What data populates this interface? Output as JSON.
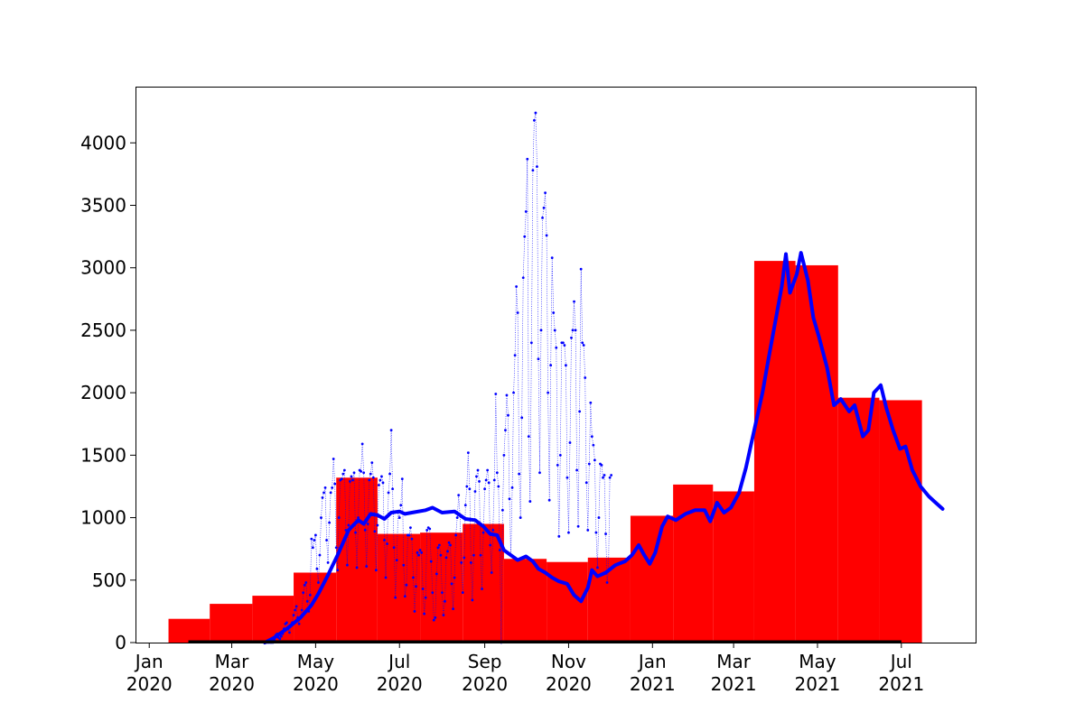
{
  "chart_data": {
    "type": "bar",
    "title": "",
    "xlabel": "",
    "ylabel": "",
    "xlim": [
      "2019-12-22",
      "2021-08-24"
    ],
    "ylim": [
      0,
      4450
    ],
    "grid": false,
    "colors": {
      "bars": "#ff0000",
      "daily": "#0000ff",
      "average": "#0000ff",
      "baseline": "#000000"
    },
    "y_ticks": [
      0,
      500,
      1000,
      1500,
      2000,
      2500,
      3000,
      3500,
      4000
    ],
    "x_ticks": [
      {
        "date": "2020-01-01",
        "line1": "Jan",
        "line2": "2020"
      },
      {
        "date": "2020-03-01",
        "line1": "Mar",
        "line2": "2020"
      },
      {
        "date": "2020-05-01",
        "line1": "May",
        "line2": "2020"
      },
      {
        "date": "2020-07-01",
        "line1": "Jul",
        "line2": "2020"
      },
      {
        "date": "2020-09-01",
        "line1": "Sep",
        "line2": "2020"
      },
      {
        "date": "2020-11-01",
        "line1": "Nov",
        "line2": "2020"
      },
      {
        "date": "2021-01-01",
        "line1": "Jan",
        "line2": "2021"
      },
      {
        "date": "2021-03-01",
        "line1": "Mar",
        "line2": "2021"
      },
      {
        "date": "2021-05-01",
        "line1": "May",
        "line2": "2021"
      },
      {
        "date": "2021-07-01",
        "line1": "Jul",
        "line2": "2021"
      }
    ],
    "monthly_bars": {
      "name": "",
      "bars": [
        {
          "start": "2020-01-15",
          "end": "2020-02-14",
          "value": 190
        },
        {
          "start": "2020-02-14",
          "end": "2020-03-16",
          "value": 310
        },
        {
          "start": "2020-03-16",
          "end": "2020-04-15",
          "value": 375
        },
        {
          "start": "2020-04-15",
          "end": "2020-05-16",
          "value": 560
        },
        {
          "start": "2020-05-16",
          "end": "2020-06-15",
          "value": 1320
        },
        {
          "start": "2020-06-15",
          "end": "2020-07-16",
          "value": 870
        },
        {
          "start": "2020-07-16",
          "end": "2020-08-16",
          "value": 880
        },
        {
          "start": "2020-08-16",
          "end": "2020-09-15",
          "value": 950
        },
        {
          "start": "2020-09-15",
          "end": "2020-10-16",
          "value": 670
        },
        {
          "start": "2020-10-16",
          "end": "2020-11-15",
          "value": 645
        },
        {
          "start": "2020-11-15",
          "end": "2020-12-16",
          "value": 680
        },
        {
          "start": "2020-12-16",
          "end": "2021-01-16",
          "value": 1015
        },
        {
          "start": "2021-01-16",
          "end": "2021-02-14",
          "value": 1265
        },
        {
          "start": "2021-02-14",
          "end": "2021-03-16",
          "value": 1210
        },
        {
          "start": "2021-03-16",
          "end": "2021-04-15",
          "value": 3055
        },
        {
          "start": "2021-04-15",
          "end": "2021-05-16",
          "value": 3020
        },
        {
          "start": "2021-05-16",
          "end": "2021-06-15",
          "value": 1960
        },
        {
          "start": "2021-06-15",
          "end": "2021-07-16",
          "value": 1940
        }
      ]
    },
    "rolling_average": {
      "name": "",
      "points": [
        [
          "2020-03-25",
          0
        ],
        [
          "2020-04-01",
          40
        ],
        [
          "2020-04-10",
          110
        ],
        [
          "2020-04-20",
          200
        ],
        [
          "2020-04-28",
          300
        ],
        [
          "2020-05-03",
          390
        ],
        [
          "2020-05-10",
          540
        ],
        [
          "2020-05-17",
          700
        ],
        [
          "2020-05-25",
          900
        ],
        [
          "2020-06-01",
          980
        ],
        [
          "2020-06-05",
          950
        ],
        [
          "2020-06-10",
          1030
        ],
        [
          "2020-06-15",
          1020
        ],
        [
          "2020-06-20",
          990
        ],
        [
          "2020-06-25",
          1040
        ],
        [
          "2020-07-01",
          1050
        ],
        [
          "2020-07-05",
          1030
        ],
        [
          "2020-07-10",
          1040
        ],
        [
          "2020-07-20",
          1060
        ],
        [
          "2020-07-25",
          1080
        ],
        [
          "2020-08-01",
          1040
        ],
        [
          "2020-08-10",
          1050
        ],
        [
          "2020-08-18",
          990
        ],
        [
          "2020-08-25",
          980
        ],
        [
          "2020-08-31",
          930
        ],
        [
          "2020-09-05",
          870
        ],
        [
          "2020-09-10",
          860
        ],
        [
          "2020-09-15",
          740
        ],
        [
          "2020-09-20",
          700
        ],
        [
          "2020-09-25",
          660
        ],
        [
          "2020-10-01",
          690
        ],
        [
          "2020-10-06",
          650
        ],
        [
          "2020-10-10",
          590
        ],
        [
          "2020-10-15",
          560
        ],
        [
          "2020-10-20",
          520
        ],
        [
          "2020-10-25",
          490
        ],
        [
          "2020-10-31",
          470
        ],
        [
          "2020-11-05",
          380
        ],
        [
          "2020-11-10",
          330
        ],
        [
          "2020-11-15",
          440
        ],
        [
          "2020-11-18",
          580
        ],
        [
          "2020-11-22",
          530
        ],
        [
          "2020-11-28",
          560
        ],
        [
          "2020-12-05",
          620
        ],
        [
          "2020-12-12",
          650
        ],
        [
          "2020-12-17",
          700
        ],
        [
          "2020-12-22",
          780
        ],
        [
          "2020-12-26",
          700
        ],
        [
          "2020-12-30",
          630
        ],
        [
          "2021-01-03",
          720
        ],
        [
          "2021-01-08",
          930
        ],
        [
          "2021-01-12",
          1010
        ],
        [
          "2021-01-18",
          980
        ],
        [
          "2021-01-25",
          1030
        ],
        [
          "2021-02-01",
          1060
        ],
        [
          "2021-02-08",
          1060
        ],
        [
          "2021-02-12",
          970
        ],
        [
          "2021-02-17",
          1120
        ],
        [
          "2021-02-22",
          1040
        ],
        [
          "2021-02-27",
          1080
        ],
        [
          "2021-03-05",
          1200
        ],
        [
          "2021-03-10",
          1400
        ],
        [
          "2021-03-15",
          1650
        ],
        [
          "2021-03-22",
          2000
        ],
        [
          "2021-03-26",
          2250
        ],
        [
          "2021-03-31",
          2550
        ],
        [
          "2021-04-05",
          2850
        ],
        [
          "2021-04-08",
          3110
        ],
        [
          "2021-04-11",
          2800
        ],
        [
          "2021-04-16",
          2950
        ],
        [
          "2021-04-19",
          3120
        ],
        [
          "2021-04-24",
          2900
        ],
        [
          "2021-04-28",
          2600
        ],
        [
          "2021-05-02",
          2450
        ],
        [
          "2021-05-08",
          2200
        ],
        [
          "2021-05-13",
          1900
        ],
        [
          "2021-05-18",
          1950
        ],
        [
          "2021-05-24",
          1850
        ],
        [
          "2021-05-28",
          1900
        ],
        [
          "2021-06-03",
          1650
        ],
        [
          "2021-06-07",
          1700
        ],
        [
          "2021-06-11",
          2000
        ],
        [
          "2021-06-16",
          2060
        ],
        [
          "2021-06-20",
          1880
        ],
        [
          "2021-06-25",
          1700
        ],
        [
          "2021-06-30",
          1550
        ],
        [
          "2021-07-04",
          1570
        ],
        [
          "2021-07-09",
          1380
        ],
        [
          "2021-07-15",
          1250
        ],
        [
          "2021-07-21",
          1170
        ],
        [
          "2021-07-25",
          1130
        ],
        [
          "2021-07-31",
          1070
        ]
      ]
    },
    "daily_values": {
      "name": "",
      "start": "2020-03-25",
      "values": [
        0,
        0,
        0,
        0,
        0,
        0,
        0,
        20,
        60,
        70,
        40,
        30,
        50,
        70,
        110,
        150,
        160,
        110,
        80,
        130,
        160,
        220,
        260,
        290,
        200,
        150,
        200,
        260,
        400,
        460,
        480,
        330,
        250,
        380,
        830,
        760,
        820,
        860,
        590,
        480,
        700,
        1000,
        1160,
        1200,
        1240,
        820,
        640,
        960,
        1200,
        1240,
        1470,
        1270,
        760,
        580,
        1000,
        1300,
        1310,
        1350,
        1380,
        900,
        620,
        940,
        1290,
        1330,
        1300,
        1360,
        880,
        600,
        1000,
        1380,
        1370,
        1590,
        1360,
        900,
        610,
        950,
        1300,
        1350,
        1440,
        1320,
        890,
        580,
        940,
        1260,
        1300,
        1330,
        1280,
        820,
        520,
        790,
        1200,
        1350,
        1700,
        1230,
        760,
        360,
        660,
        1050,
        1000,
        1100,
        1310,
        620,
        370,
        460,
        860,
        860,
        920,
        830,
        520,
        250,
        450,
        720,
        700,
        740,
        720,
        430,
        230,
        360,
        900,
        920,
        910,
        650,
        400,
        180,
        200,
        550,
        760,
        780,
        700,
        400,
        220,
        330,
        680,
        730,
        800,
        780,
        470,
        270,
        520,
        860,
        1000,
        1180,
        1020,
        640,
        400,
        680,
        1100,
        1250,
        1520,
        1230,
        640,
        340,
        700,
        1210,
        1330,
        1380,
        1290,
        700,
        430,
        880,
        1230,
        1300,
        1380,
        1280,
        780,
        560,
        900,
        1300,
        1990,
        1360,
        1250,
        740,
        0,
        1060,
        1500,
        1700,
        1980,
        1820,
        1150,
        700,
        1240,
        2000,
        2300,
        2850,
        2640,
        1350,
        1000,
        1800,
        2920,
        3250,
        3450,
        3870,
        1650,
        1130,
        2400,
        3780,
        4180,
        4240,
        3810,
        2270,
        1360,
        2500,
        3400,
        3480,
        3600,
        3260,
        2000,
        1140,
        2220,
        3080,
        2640,
        2500,
        2360,
        1420,
        850,
        1500,
        2400,
        2400,
        2380,
        2220,
        1320,
        880,
        1600,
        2440,
        2500,
        2730,
        2500,
        1380,
        930,
        1850,
        2990,
        2400,
        2380,
        2120,
        1280,
        900,
        1430,
        1920,
        1650,
        1580,
        1460,
        880,
        600,
        1000,
        1430,
        1420,
        1320,
        1340,
        870,
        480,
        580,
        1320,
        1340
      ]
    }
  }
}
